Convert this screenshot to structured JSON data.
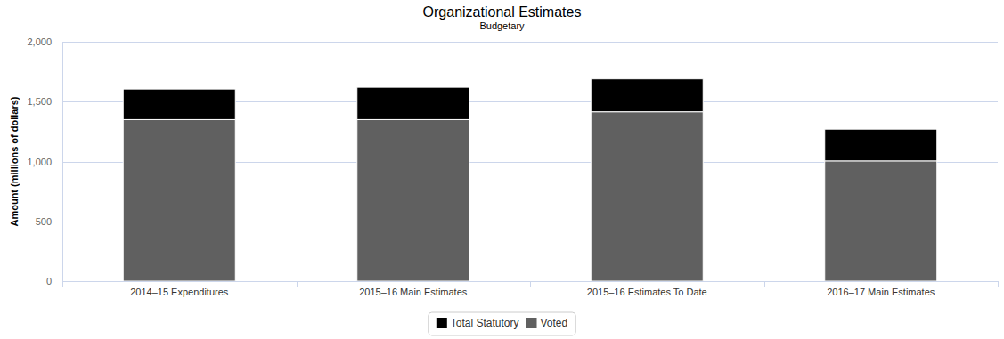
{
  "chart_data": {
    "type": "bar",
    "title": "Organizational Estimates",
    "subtitle": "Budgetary",
    "y_label": "Amount (millions of dollars)",
    "categories": [
      "2014–15 Expenditures",
      "2015–16 Main Estimates",
      "2015–16 Estimates To Date",
      "2016–17 Main Estimates"
    ],
    "series": [
      {
        "name": "Total Statutory",
        "color": "#000000",
        "values": [
          255,
          270,
          275,
          265
        ]
      },
      {
        "name": "Voted",
        "color": "#606060",
        "values": [
          1350,
          1350,
          1415,
          1005
        ]
      }
    ],
    "ylim": [
      0,
      2000
    ],
    "yticks": [
      0,
      500,
      {
        "value": 1000,
        "label": "1,000"
      },
      {
        "value": 1500,
        "label": "1,500"
      },
      {
        "value": 2000,
        "label": "2,000"
      }
    ],
    "stacked": true,
    "grid": true,
    "legend": "bottom"
  }
}
